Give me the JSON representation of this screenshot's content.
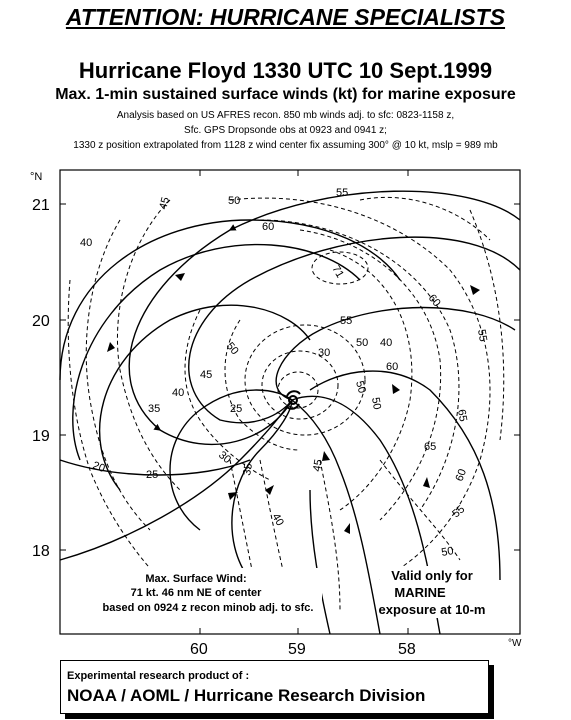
{
  "header": {
    "attention": "ATTENTION: HURRICANE SPECIALISTS",
    "title": "Hurricane Floyd 1330 UTC 10 Sept.1999",
    "subtitle": "Max. 1-min sustained surface winds (kt) for marine exposure",
    "note_line1": "Analysis based on US AFRES recon. 850 mb winds adj. to sfc: 0823-1158 z,",
    "note_line2": "Sfc. GPS  Dropsonde obs at 0923 and 0941 z;",
    "note_line3": "1330 z position extrapolated from 1128 z wind center  fix assuming  300° @ 10 kt, mslp = 989 mb"
  },
  "map": {
    "lat_unit": "°N",
    "lon_unit": "°W",
    "lat_ticks": [
      "21",
      "20",
      "19",
      "18"
    ],
    "lon_ticks": [
      "60",
      "59",
      "58"
    ],
    "contour_labels": [
      "45",
      "50",
      "55",
      "71",
      "60",
      "40",
      "55",
      "60",
      "50",
      "55",
      "50",
      "30",
      "40",
      "60",
      "45",
      "50",
      "40",
      "35",
      "25",
      "65",
      "50",
      "20",
      "25",
      "30",
      "35",
      "40",
      "45",
      "60",
      "65",
      "55",
      "50"
    ],
    "max_wind_line1": "Max. Surface Wind:",
    "max_wind_line2": "71 kt. 46 nm NE of center",
    "max_wind_line3": "based on 0924 z recon minob adj. to sfc.",
    "valid_line1": "Valid only for",
    "valid_line2": "MARINE",
    "valid_line3": "exposure at 10-m",
    "accent_color": "#000000"
  },
  "footer": {
    "line1": "Experimental research product of :",
    "line2": "NOAA / AOML / Hurricane Research Division"
  }
}
